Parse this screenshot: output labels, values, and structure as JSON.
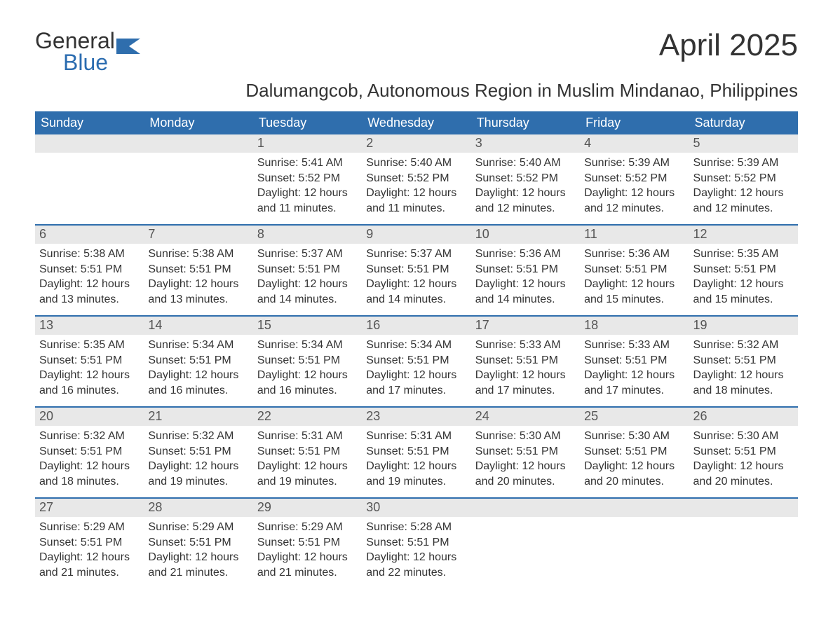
{
  "logo": {
    "text1": "General",
    "text2": "Blue"
  },
  "title": "April 2025",
  "subtitle": "Dalumangcob, Autonomous Region in Muslim Mindanao, Philippines",
  "colors": {
    "header_bg": "#2f6ead",
    "header_text": "#ffffff",
    "daynum_bg": "#e8e8e8",
    "week_border": "#2f6ead",
    "logo_blue": "#2b6cb0",
    "body_text": "#333333"
  },
  "days_of_week": [
    "Sunday",
    "Monday",
    "Tuesday",
    "Wednesday",
    "Thursday",
    "Friday",
    "Saturday"
  ],
  "weeks": [
    [
      {
        "day": "",
        "sunrise": "",
        "sunset": "",
        "daylight": ""
      },
      {
        "day": "",
        "sunrise": "",
        "sunset": "",
        "daylight": ""
      },
      {
        "day": "1",
        "sunrise": "Sunrise: 5:41 AM",
        "sunset": "Sunset: 5:52 PM",
        "daylight": "Daylight: 12 hours and 11 minutes."
      },
      {
        "day": "2",
        "sunrise": "Sunrise: 5:40 AM",
        "sunset": "Sunset: 5:52 PM",
        "daylight": "Daylight: 12 hours and 11 minutes."
      },
      {
        "day": "3",
        "sunrise": "Sunrise: 5:40 AM",
        "sunset": "Sunset: 5:52 PM",
        "daylight": "Daylight: 12 hours and 12 minutes."
      },
      {
        "day": "4",
        "sunrise": "Sunrise: 5:39 AM",
        "sunset": "Sunset: 5:52 PM",
        "daylight": "Daylight: 12 hours and 12 minutes."
      },
      {
        "day": "5",
        "sunrise": "Sunrise: 5:39 AM",
        "sunset": "Sunset: 5:52 PM",
        "daylight": "Daylight: 12 hours and 12 minutes."
      }
    ],
    [
      {
        "day": "6",
        "sunrise": "Sunrise: 5:38 AM",
        "sunset": "Sunset: 5:51 PM",
        "daylight": "Daylight: 12 hours and 13 minutes."
      },
      {
        "day": "7",
        "sunrise": "Sunrise: 5:38 AM",
        "sunset": "Sunset: 5:51 PM",
        "daylight": "Daylight: 12 hours and 13 minutes."
      },
      {
        "day": "8",
        "sunrise": "Sunrise: 5:37 AM",
        "sunset": "Sunset: 5:51 PM",
        "daylight": "Daylight: 12 hours and 14 minutes."
      },
      {
        "day": "9",
        "sunrise": "Sunrise: 5:37 AM",
        "sunset": "Sunset: 5:51 PM",
        "daylight": "Daylight: 12 hours and 14 minutes."
      },
      {
        "day": "10",
        "sunrise": "Sunrise: 5:36 AM",
        "sunset": "Sunset: 5:51 PM",
        "daylight": "Daylight: 12 hours and 14 minutes."
      },
      {
        "day": "11",
        "sunrise": "Sunrise: 5:36 AM",
        "sunset": "Sunset: 5:51 PM",
        "daylight": "Daylight: 12 hours and 15 minutes."
      },
      {
        "day": "12",
        "sunrise": "Sunrise: 5:35 AM",
        "sunset": "Sunset: 5:51 PM",
        "daylight": "Daylight: 12 hours and 15 minutes."
      }
    ],
    [
      {
        "day": "13",
        "sunrise": "Sunrise: 5:35 AM",
        "sunset": "Sunset: 5:51 PM",
        "daylight": "Daylight: 12 hours and 16 minutes."
      },
      {
        "day": "14",
        "sunrise": "Sunrise: 5:34 AM",
        "sunset": "Sunset: 5:51 PM",
        "daylight": "Daylight: 12 hours and 16 minutes."
      },
      {
        "day": "15",
        "sunrise": "Sunrise: 5:34 AM",
        "sunset": "Sunset: 5:51 PM",
        "daylight": "Daylight: 12 hours and 16 minutes."
      },
      {
        "day": "16",
        "sunrise": "Sunrise: 5:34 AM",
        "sunset": "Sunset: 5:51 PM",
        "daylight": "Daylight: 12 hours and 17 minutes."
      },
      {
        "day": "17",
        "sunrise": "Sunrise: 5:33 AM",
        "sunset": "Sunset: 5:51 PM",
        "daylight": "Daylight: 12 hours and 17 minutes."
      },
      {
        "day": "18",
        "sunrise": "Sunrise: 5:33 AM",
        "sunset": "Sunset: 5:51 PM",
        "daylight": "Daylight: 12 hours and 17 minutes."
      },
      {
        "day": "19",
        "sunrise": "Sunrise: 5:32 AM",
        "sunset": "Sunset: 5:51 PM",
        "daylight": "Daylight: 12 hours and 18 minutes."
      }
    ],
    [
      {
        "day": "20",
        "sunrise": "Sunrise: 5:32 AM",
        "sunset": "Sunset: 5:51 PM",
        "daylight": "Daylight: 12 hours and 18 minutes."
      },
      {
        "day": "21",
        "sunrise": "Sunrise: 5:32 AM",
        "sunset": "Sunset: 5:51 PM",
        "daylight": "Daylight: 12 hours and 19 minutes."
      },
      {
        "day": "22",
        "sunrise": "Sunrise: 5:31 AM",
        "sunset": "Sunset: 5:51 PM",
        "daylight": "Daylight: 12 hours and 19 minutes."
      },
      {
        "day": "23",
        "sunrise": "Sunrise: 5:31 AM",
        "sunset": "Sunset: 5:51 PM",
        "daylight": "Daylight: 12 hours and 19 minutes."
      },
      {
        "day": "24",
        "sunrise": "Sunrise: 5:30 AM",
        "sunset": "Sunset: 5:51 PM",
        "daylight": "Daylight: 12 hours and 20 minutes."
      },
      {
        "day": "25",
        "sunrise": "Sunrise: 5:30 AM",
        "sunset": "Sunset: 5:51 PM",
        "daylight": "Daylight: 12 hours and 20 minutes."
      },
      {
        "day": "26",
        "sunrise": "Sunrise: 5:30 AM",
        "sunset": "Sunset: 5:51 PM",
        "daylight": "Daylight: 12 hours and 20 minutes."
      }
    ],
    [
      {
        "day": "27",
        "sunrise": "Sunrise: 5:29 AM",
        "sunset": "Sunset: 5:51 PM",
        "daylight": "Daylight: 12 hours and 21 minutes."
      },
      {
        "day": "28",
        "sunrise": "Sunrise: 5:29 AM",
        "sunset": "Sunset: 5:51 PM",
        "daylight": "Daylight: 12 hours and 21 minutes."
      },
      {
        "day": "29",
        "sunrise": "Sunrise: 5:29 AM",
        "sunset": "Sunset: 5:51 PM",
        "daylight": "Daylight: 12 hours and 21 minutes."
      },
      {
        "day": "30",
        "sunrise": "Sunrise: 5:28 AM",
        "sunset": "Sunset: 5:51 PM",
        "daylight": "Daylight: 12 hours and 22 minutes."
      },
      {
        "day": "",
        "sunrise": "",
        "sunset": "",
        "daylight": ""
      },
      {
        "day": "",
        "sunrise": "",
        "sunset": "",
        "daylight": ""
      },
      {
        "day": "",
        "sunrise": "",
        "sunset": "",
        "daylight": ""
      }
    ]
  ]
}
